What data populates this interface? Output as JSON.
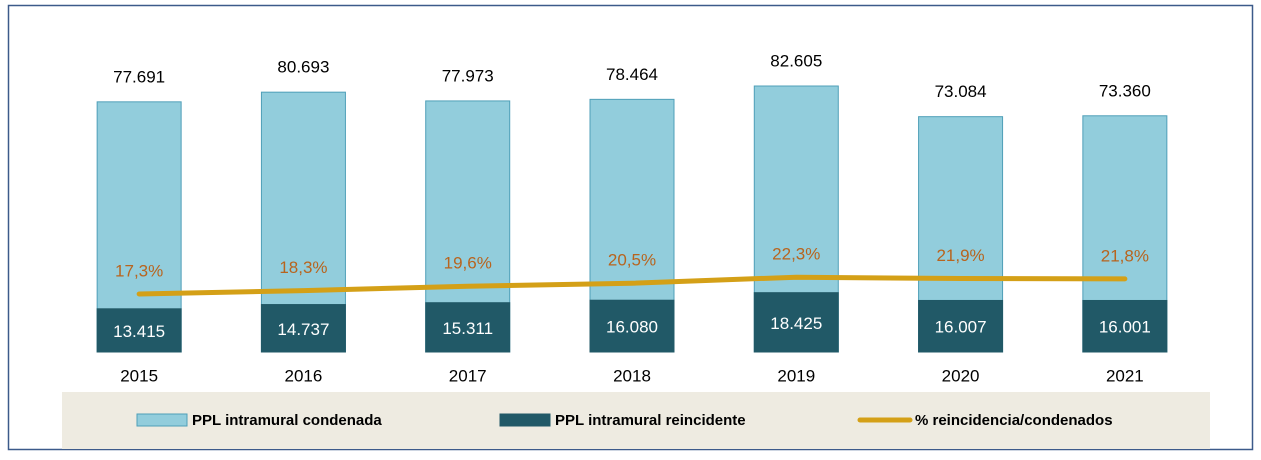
{
  "chart_data": {
    "type": "bar",
    "categories": [
      "2015",
      "2016",
      "2017",
      "2018",
      "2019",
      "2020",
      "2021"
    ],
    "series": [
      {
        "name": "PPL intramural condenada",
        "color": "#92cddc",
        "type": "bar",
        "values": [
          77691,
          80693,
          77973,
          78464,
          82605,
          73084,
          73360
        ],
        "value_labels": [
          "77.691",
          "80.693",
          "77.973",
          "78.464",
          "82.605",
          "73.084",
          "73.360"
        ]
      },
      {
        "name": "PPL intramural reincidente",
        "color": "#215967",
        "type": "bar",
        "values": [
          13415,
          14737,
          15311,
          16080,
          18425,
          16007,
          16001
        ],
        "value_labels": [
          "13.415",
          "14.737",
          "15.311",
          "16.080",
          "18.425",
          "16.007",
          "16.001"
        ]
      },
      {
        "name": "% reincidencia/condenados",
        "color": "#d4a017",
        "type": "line",
        "axis": "y2",
        "values": [
          17.3,
          18.3,
          19.6,
          20.5,
          22.3,
          21.9,
          21.8
        ],
        "value_labels": [
          "17,3%",
          "18,3%",
          "19,6%",
          "20,5%",
          "22,3%",
          "21,9%",
          "21,8%"
        ]
      }
    ],
    "ylim": [
      0,
      100000
    ],
    "y2lim": [
      0,
      96
    ],
    "legend": "bottom"
  }
}
